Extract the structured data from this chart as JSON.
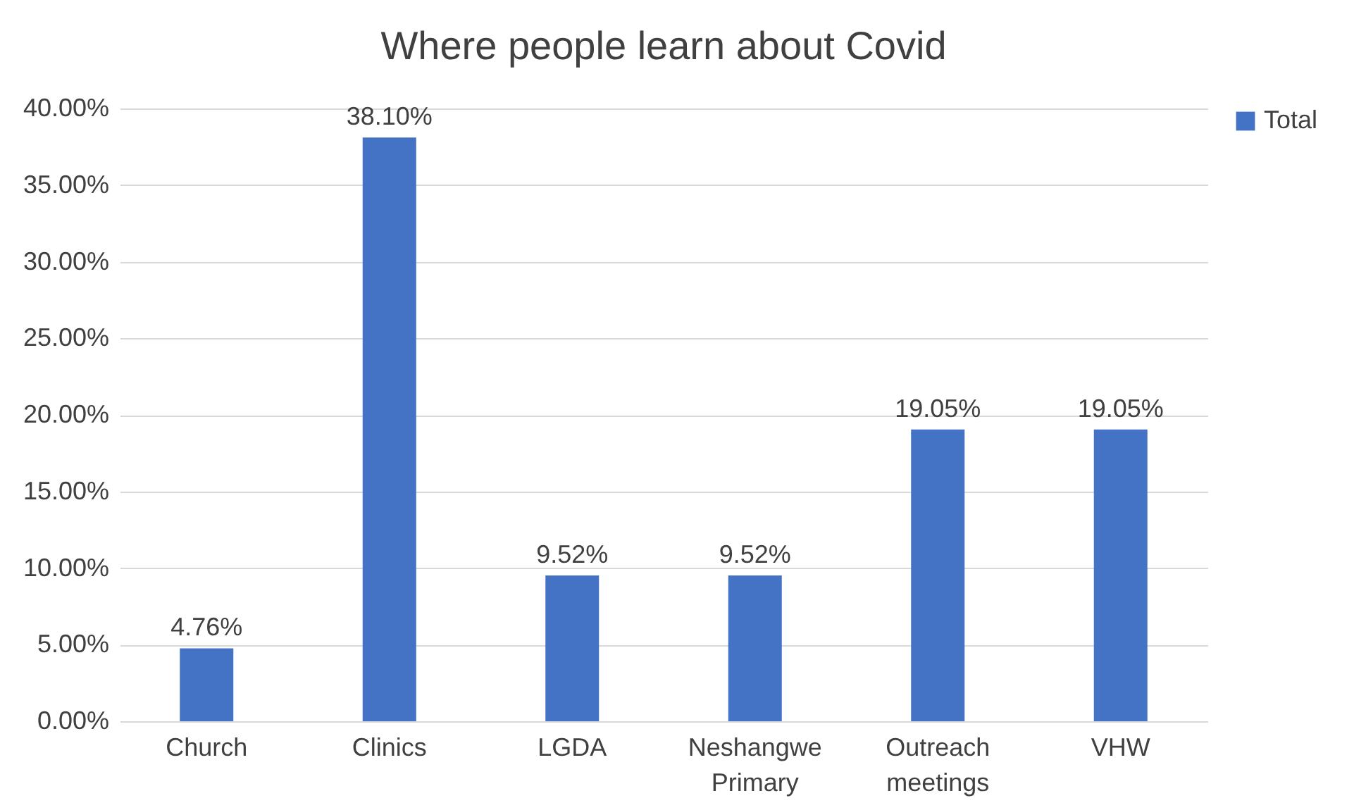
{
  "chart_data": {
    "type": "bar",
    "title": "Where people learn about Covid",
    "categories": [
      "Church",
      "Clinics",
      "LGDA",
      "Neshangwe Primary",
      "Outreach meetings",
      "VHW"
    ],
    "series": [
      {
        "name": "Total",
        "color": "#4472c4",
        "values": [
          4.76,
          38.1,
          9.52,
          9.52,
          19.05,
          19.05
        ]
      }
    ],
    "value_labels": [
      "4.76%",
      "38.10%",
      "9.52%",
      "9.52%",
      "19.05%",
      "19.05%"
    ],
    "ylim": [
      0,
      40
    ],
    "yticks": [
      {
        "value": 0,
        "label": "0.00%"
      },
      {
        "value": 5,
        "label": "5.00%"
      },
      {
        "value": 10,
        "label": "10.00%"
      },
      {
        "value": 15,
        "label": "15.00%"
      },
      {
        "value": 20,
        "label": "20.00%"
      },
      {
        "value": 25,
        "label": "25.00%"
      },
      {
        "value": 30,
        "label": "30.00%"
      },
      {
        "value": 35,
        "label": "35.00%"
      },
      {
        "value": 40,
        "label": "40.00%"
      }
    ],
    "grid": "y",
    "legend": "right"
  }
}
